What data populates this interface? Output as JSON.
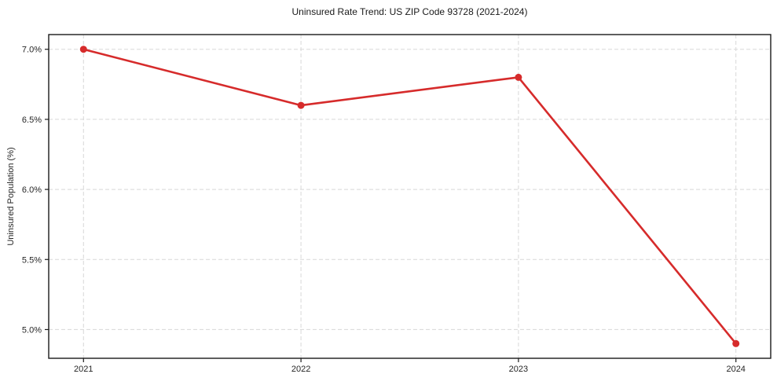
{
  "chart_data": {
    "type": "line",
    "title": "Uninsured Rate Trend: US ZIP Code 93728 (2021-2024)",
    "xlabel": "",
    "ylabel": "Uninsured Population (%)",
    "x": [
      2021,
      2022,
      2023,
      2024
    ],
    "x_tick_labels": [
      "2021",
      "2022",
      "2023",
      "2024"
    ],
    "series": [
      {
        "name": "Uninsured Population (%)",
        "values": [
          7.0,
          6.6,
          6.8,
          4.9
        ],
        "color": "#d62b2b"
      }
    ],
    "y_ticks": [
      5.0,
      5.5,
      6.0,
      6.5,
      7.0
    ],
    "y_tick_labels": [
      "5.0%",
      "5.5%",
      "6.0%",
      "6.5%",
      "7.0%"
    ],
    "xlim": [
      2020.84,
      2024.16
    ],
    "ylim": [
      4.795,
      7.105
    ],
    "grid": true,
    "grid_style": "dashed",
    "legend_position": "none",
    "colors": {
      "line": "#d62b2b",
      "marker": "#d62b2b",
      "grid": "#d8d8d8",
      "axis": "#1a1a1a",
      "tick_label": "#262626",
      "title": "#1a1a1a",
      "background": "#ffffff"
    }
  }
}
